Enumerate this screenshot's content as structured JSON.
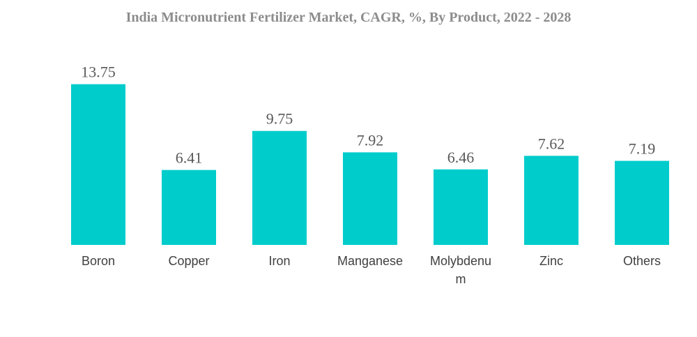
{
  "chart_data": {
    "type": "bar",
    "title": "India Micronutrient Fertilizer Market, CAGR, %, By Product, 2022 - 2028",
    "categories": [
      "Boron",
      "Copper",
      "Iron",
      "Manganese",
      "Molybdenum",
      "Zinc",
      "Others"
    ],
    "category_lines": [
      [
        "Boron"
      ],
      [
        "Copper"
      ],
      [
        "Iron"
      ],
      [
        "Manganese"
      ],
      [
        "Molybdenu",
        "m"
      ],
      [
        "Zinc"
      ],
      [
        "Others"
      ]
    ],
    "values": [
      13.75,
      6.41,
      9.75,
      7.92,
      6.46,
      7.62,
      7.19
    ],
    "value_labels": [
      "13.75",
      "6.41",
      "9.75",
      "7.92",
      "6.46",
      "7.62",
      "7.19"
    ],
    "bar_color": "#00CCCC",
    "xlabel": "",
    "ylabel": "",
    "grid": false,
    "legend": "none"
  }
}
